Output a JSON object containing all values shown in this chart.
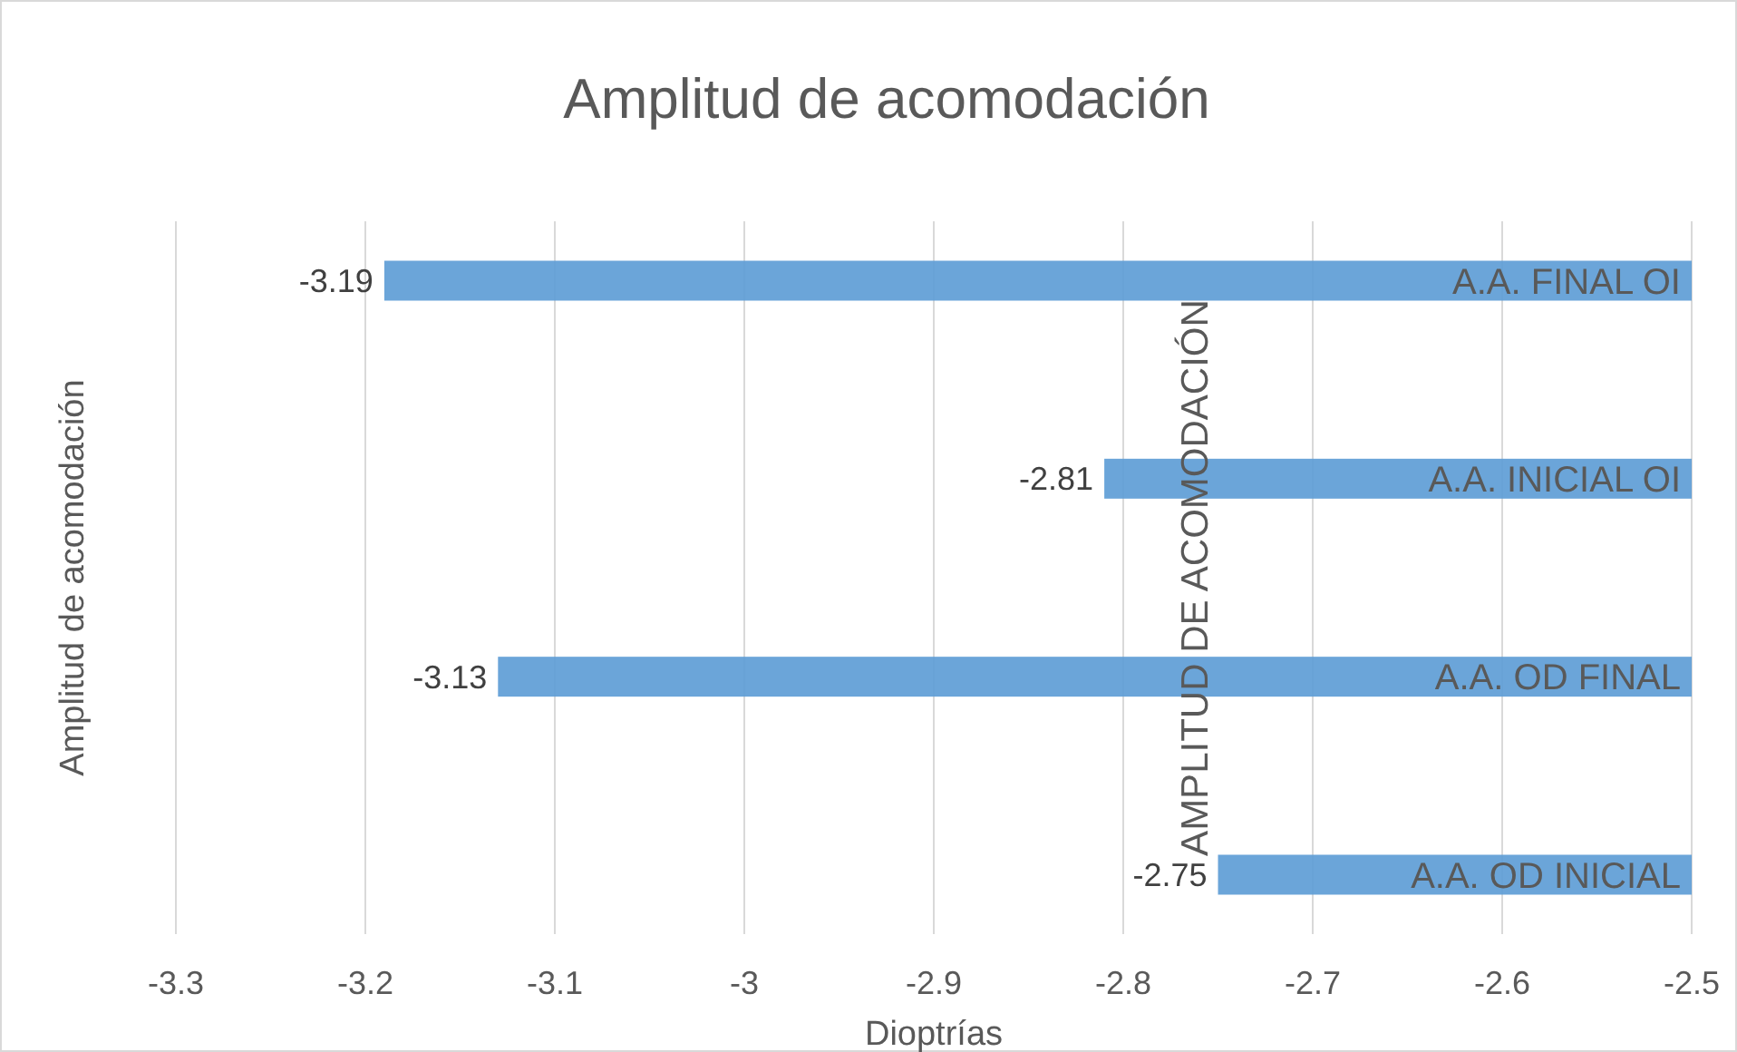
{
  "chart_data": {
    "type": "bar",
    "orientation": "horizontal",
    "title": "Amplitud de acomodación",
    "xlabel": "Dioptrías",
    "ylabel": "Amplitud de acomodación",
    "y2label": "AMPLITUD DE ACOMODACIÓN",
    "categories": [
      "A.A. FINAL OI",
      "A.A. INICIAL OI",
      "A.A. OD FINAL",
      "A.A. OD INICIAL"
    ],
    "values": [
      -3.19,
      -2.81,
      -3.13,
      -2.75
    ],
    "color": "#5b9bd5",
    "xlim": [
      -3.3,
      -2.5
    ],
    "xticks": [
      -3.3,
      -3.2,
      -3.1,
      -3,
      -2.9,
      -2.8,
      -2.7,
      -2.6,
      -2.5
    ],
    "grid": "x",
    "data_labels": true
  }
}
